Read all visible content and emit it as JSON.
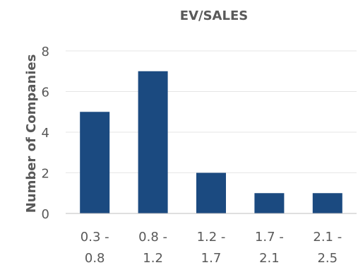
{
  "chart_data": {
    "type": "bar",
    "title": "EV/SALES",
    "xlabel": "",
    "ylabel": "Number of Companies",
    "categories": [
      [
        "0.3 -",
        "0.8"
      ],
      [
        "0.8 -",
        "1.2"
      ],
      [
        "1.2 -",
        "1.7"
      ],
      [
        "1.7 -",
        "2.1"
      ],
      [
        "2.1 -",
        "2.5"
      ]
    ],
    "values": [
      5,
      7,
      2,
      1,
      1
    ],
    "ylim": [
      0,
      8
    ],
    "yticks": [
      0,
      2,
      4,
      6,
      8
    ],
    "grid": true,
    "legend": "none",
    "bar_color": "#1b4a80"
  }
}
